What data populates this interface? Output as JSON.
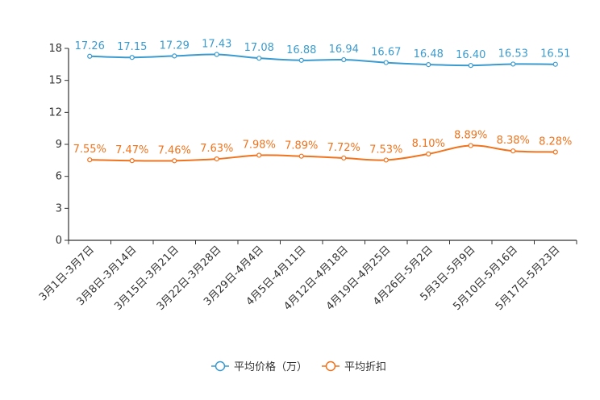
{
  "chart_data": {
    "type": "line",
    "title": "",
    "xlabel": "",
    "ylabel": "",
    "ylim": [
      0,
      18
    ],
    "yticks": [
      0,
      3,
      6,
      9,
      12,
      15,
      18
    ],
    "categories": [
      "3月1日-3月7日",
      "3月8日-3月14日",
      "3月15日-3月21日",
      "3月22日-3月28日",
      "3月29日-4月4日",
      "4月5日-4月11日",
      "4月12日-4月18日",
      "4月19日-4月25日",
      "4月26日-5月2日",
      "5月3日-5月9日",
      "5月10日-5月16日",
      "5月17日-5月23日"
    ],
    "series": [
      {
        "name": "平均价格（万）",
        "color": "#3b9bcf",
        "values": [
          17.26,
          17.15,
          17.29,
          17.43,
          17.08,
          16.88,
          16.94,
          16.67,
          16.48,
          16.4,
          16.53,
          16.51
        ],
        "labels": [
          "17.26",
          "17.15",
          "17.29",
          "17.43",
          "17.08",
          "16.88",
          "16.94",
          "16.67",
          "16.48",
          "16.40",
          "16.53",
          "16.51"
        ]
      },
      {
        "name": "平均折扣",
        "color": "#f0731d",
        "values": [
          7.55,
          7.47,
          7.46,
          7.63,
          7.98,
          7.89,
          7.72,
          7.53,
          8.1,
          8.89,
          8.38,
          8.28
        ],
        "labels": [
          "7.55%",
          "7.47%",
          "7.46%",
          "7.63%",
          "7.98%",
          "7.89%",
          "7.72%",
          "7.53%",
          "8.10%",
          "8.89%",
          "8.38%",
          "8.28%"
        ]
      }
    ],
    "legend": "bottom-center",
    "grid": false
  }
}
